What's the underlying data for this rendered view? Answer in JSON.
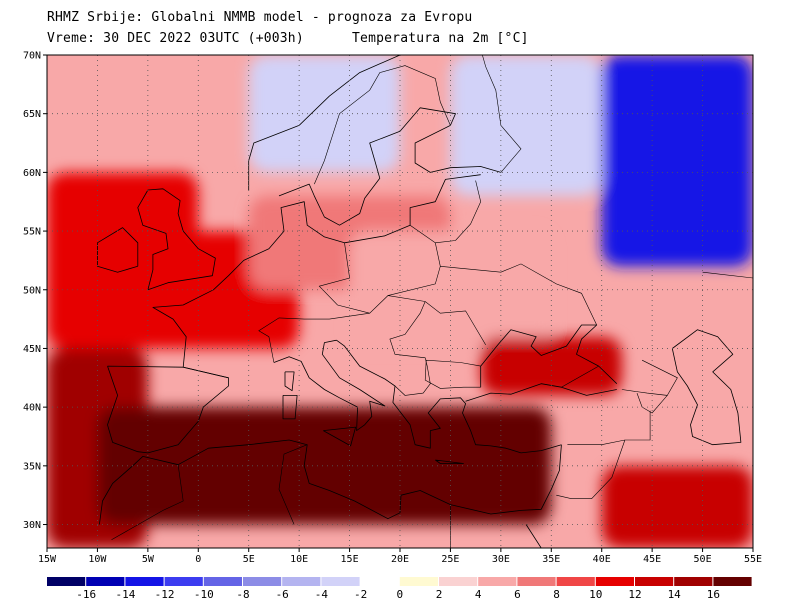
{
  "header": {
    "title": "RHMZ Srbije: Globalni NMMB model - prognoza za Evropu",
    "subtitle_time": "Vreme: 30 DEC 2022 03UTC (+003h)",
    "subtitle_field": "Temperatura na 2m [°C]"
  },
  "map": {
    "lon_range": [
      -15,
      55
    ],
    "lat_range": [
      28,
      70
    ],
    "lon_ticks": [
      "15W",
      "10W",
      "5W",
      "0",
      "5E",
      "10E",
      "15E",
      "20E",
      "25E",
      "30E",
      "35E",
      "40E",
      "45E",
      "50E",
      "55E"
    ],
    "lat_ticks": [
      "70N",
      "65N",
      "60N",
      "55N",
      "50N",
      "45N",
      "40N",
      "35N",
      "30N"
    ],
    "gridlines": "dotted",
    "projection": "lat-lon"
  },
  "colorbar": {
    "labels": [
      "-16",
      "-14",
      "-12",
      "-10",
      "-8",
      "-6",
      "-4",
      "-2",
      "0",
      "2",
      "4",
      "6",
      "8",
      "10",
      "12",
      "14",
      "16"
    ],
    "colors": [
      "#000066",
      "#0000b4",
      "#1414e6",
      "#3c3cf0",
      "#6464e6",
      "#8c8ce6",
      "#b4b4f0",
      "#d2d2f8",
      "#ffffff",
      "#fffad2",
      "#fad2d2",
      "#f8a8a8",
      "#f07878",
      "#f04646",
      "#e60000",
      "#c80000",
      "#a00000",
      "#640000"
    ]
  },
  "chart_data": {
    "type": "heatmap",
    "title": "RHMZ Srbije: Globalni NMMB model - prognoza za Evropu",
    "subtitle": "Vreme: 30 DEC 2022 03UTC (+003h)  Temperatura na 2m [°C]",
    "variable": "Temperatura na 2m",
    "units": "°C",
    "xlim": [
      -15,
      55
    ],
    "ylim": [
      28,
      70
    ],
    "color_levels": [
      -16,
      -14,
      -12,
      -10,
      -8,
      -6,
      -4,
      -2,
      0,
      2,
      4,
      6,
      8,
      10,
      12,
      14,
      16
    ],
    "regions": [
      {
        "lon": [
          -15,
          -5
        ],
        "lat": [
          28,
          45
        ],
        "temp_c": [
          12,
          16
        ]
      },
      {
        "lon": [
          -15,
          0
        ],
        "lat": [
          45,
          60
        ],
        "temp_c": [
          8,
          12
        ]
      },
      {
        "lon": [
          -5,
          10
        ],
        "lat": [
          45,
          55
        ],
        "temp_c": [
          8,
          12
        ]
      },
      {
        "lon": [
          5,
          25
        ],
        "lat": [
          50,
          58
        ],
        "temp_c": [
          4,
          8
        ]
      },
      {
        "lon": [
          15,
          35
        ],
        "lat": [
          45,
          55
        ],
        "temp_c": [
          2,
          6
        ]
      },
      {
        "lon": [
          -10,
          35
        ],
        "lat": [
          30,
          40
        ],
        "temp_c": [
          14,
          18
        ]
      },
      {
        "lon": [
          28,
          42
        ],
        "lat": [
          41,
          46
        ],
        "temp_c": [
          10,
          14
        ]
      },
      {
        "lon": [
          40,
          55
        ],
        "lat": [
          52,
          70
        ],
        "temp_c": [
          -16,
          -10
        ]
      },
      {
        "lon": [
          5,
          20
        ],
        "lat": [
          60,
          70
        ],
        "temp_c": [
          -6,
          0
        ]
      },
      {
        "lon": [
          25,
          40
        ],
        "lat": [
          58,
          70
        ],
        "temp_c": [
          -6,
          -2
        ]
      },
      {
        "lon": [
          40,
          55
        ],
        "lat": [
          28,
          35
        ],
        "temp_c": [
          10,
          16
        ]
      }
    ]
  }
}
